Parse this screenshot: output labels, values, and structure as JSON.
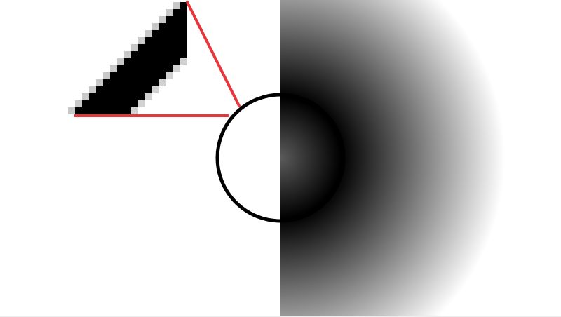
{
  "colors": {
    "background": "#ffffff",
    "stroke_red": "#e8353b",
    "circle_outline": "#000000",
    "pixel_shape": "#000000",
    "antialias_gray": "#9a9a9a",
    "gradient_center": "#5a5a5a",
    "gradient_mid": "#000000",
    "gradient_outer": "#ffffff",
    "bottom_edge": "#eeeeee"
  },
  "shapes": {
    "pixel_shape": "pixelated-diagonal-band",
    "lines": "red-line-segments",
    "circle": "outlined-circle",
    "gradient": "radial-gradient-half-plane"
  }
}
